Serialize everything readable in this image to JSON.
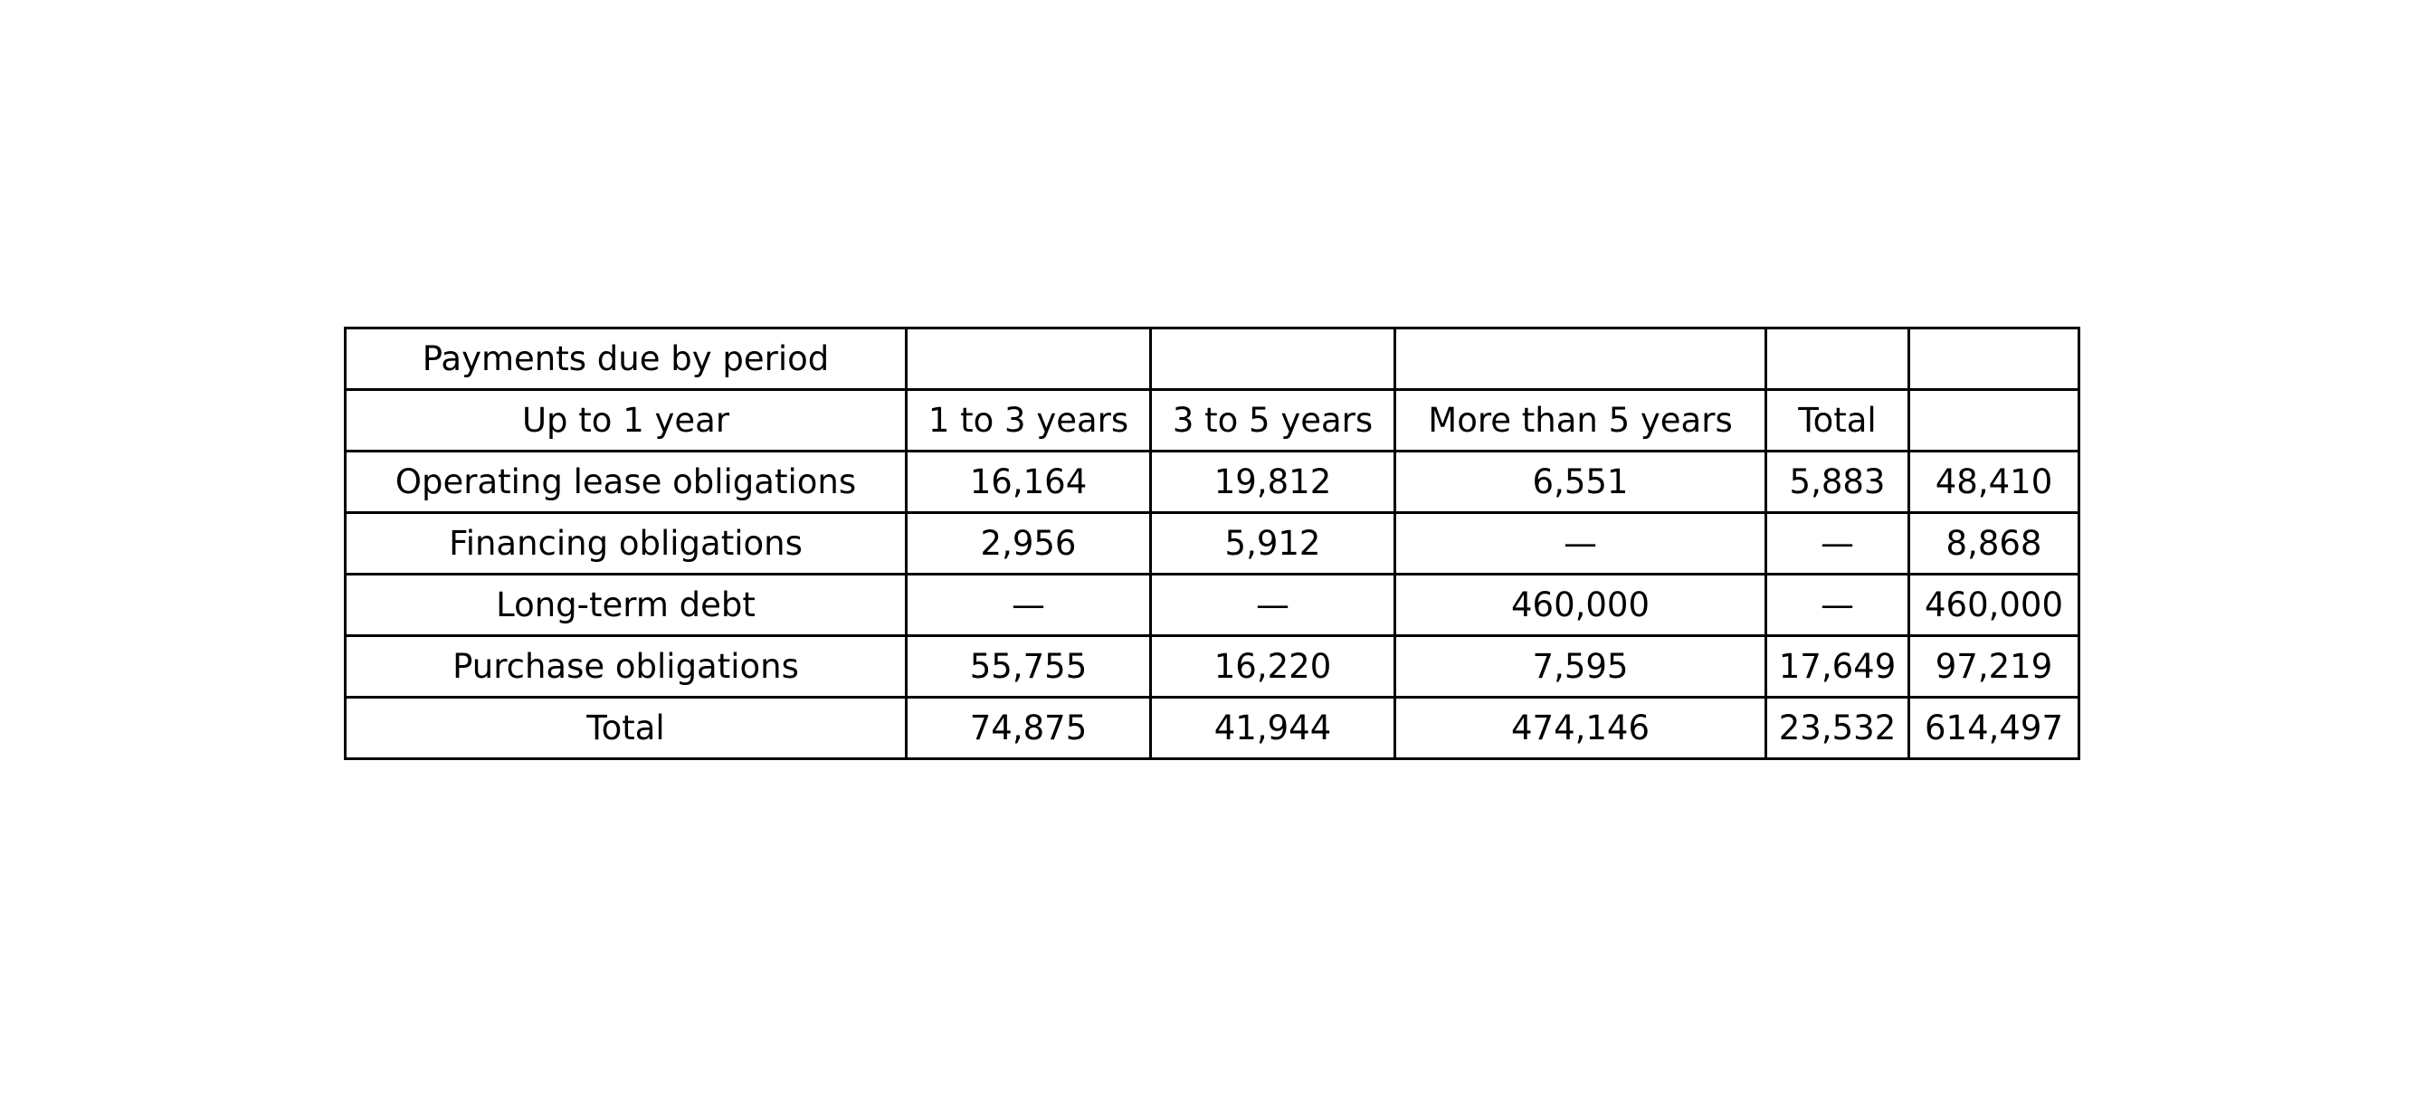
{
  "chart_data": {
    "type": "table",
    "rows": [
      [
        "Payments due by period",
        "",
        "",
        "",
        "",
        ""
      ],
      [
        "Up to 1 year",
        "1 to 3 years",
        "3 to 5 years",
        "More than 5 years",
        "Total",
        ""
      ],
      [
        "Operating lease obligations",
        "16,164",
        "19,812",
        "6,551",
        "5,883",
        "48,410"
      ],
      [
        "Financing obligations",
        "2,956",
        "5,912",
        "—",
        "—",
        "8,868"
      ],
      [
        "Long-term debt",
        "—",
        "—",
        "460,000",
        "—",
        "460,000"
      ],
      [
        "Purchase obligations",
        "55,755",
        "16,220",
        "7,595",
        "17,649",
        "97,219"
      ],
      [
        "Total",
        "74,875",
        "41,944",
        "474,146",
        "23,532",
        "614,497"
      ]
    ]
  }
}
